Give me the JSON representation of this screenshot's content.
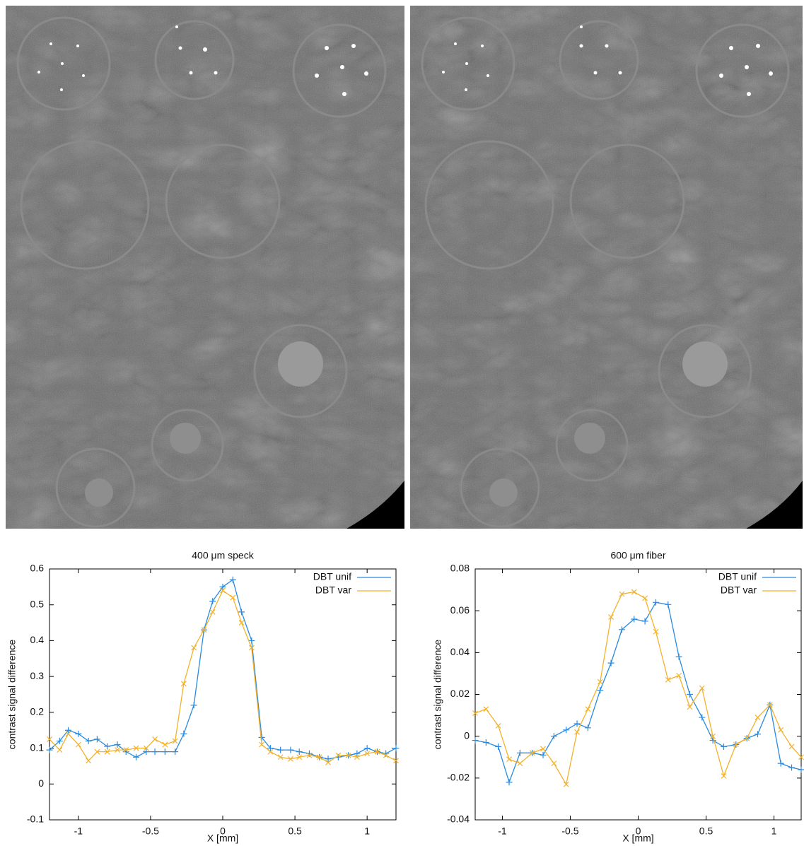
{
  "chart_data": [
    {
      "type": "line",
      "title": "400 μm speck",
      "x_label": "X [mm]",
      "y_label": "contrast signal difference",
      "x": [
        -1.2,
        -1.13,
        -1.07,
        -1.0,
        -0.93,
        -0.87,
        -0.8,
        -0.73,
        -0.67,
        -0.6,
        -0.53,
        -0.47,
        -0.4,
        -0.33,
        -0.27,
        -0.2,
        -0.13,
        -0.07,
        0,
        0.07,
        0.13,
        0.2,
        0.27,
        0.33,
        0.4,
        0.47,
        0.53,
        0.6,
        0.67,
        0.73,
        0.8,
        0.87,
        0.93,
        1.0,
        1.07,
        1.13,
        1.2
      ],
      "series": [
        {
          "name": "DBT unif",
          "color": "#2a8ae0",
          "marker": "+",
          "values": [
            0.095,
            0.12,
            0.15,
            0.14,
            0.12,
            0.125,
            0.105,
            0.11,
            0.09,
            0.075,
            0.09,
            0.09,
            0.09,
            0.09,
            0.14,
            0.22,
            0.43,
            0.51,
            0.55,
            0.57,
            0.48,
            0.4,
            0.13,
            0.1,
            0.095,
            0.095,
            0.09,
            0.085,
            0.075,
            0.07,
            0.075,
            0.08,
            0.085,
            0.1,
            0.09,
            0.085,
            0.1
          ]
        },
        {
          "name": "DBT var",
          "color": "#f2b22c",
          "marker": "x",
          "values": [
            0.125,
            0.095,
            0.14,
            0.11,
            0.065,
            0.09,
            0.09,
            0.095,
            0.095,
            0.1,
            0.1,
            0.125,
            0.11,
            0.12,
            0.28,
            0.38,
            0.43,
            0.48,
            0.54,
            0.52,
            0.45,
            0.38,
            0.11,
            0.09,
            0.075,
            0.07,
            0.075,
            0.08,
            0.075,
            0.06,
            0.08,
            0.08,
            0.075,
            0.085,
            0.09,
            0.08,
            0.065
          ]
        }
      ],
      "xlim": [
        -1.2,
        1.2
      ],
      "xticks": [
        -1,
        -0.5,
        0,
        0.5,
        1
      ],
      "ylim": [
        -0.1,
        0.6
      ],
      "yticks": [
        -0.1,
        0,
        0.1,
        0.2,
        0.3,
        0.4,
        0.5,
        0.6
      ],
      "legend": "top-right"
    },
    {
      "type": "line",
      "title": "600 μm fiber",
      "x_label": "X [mm]",
      "y_label": "contrast signal difference",
      "x": [
        -1.2,
        -1.12,
        -1.03,
        -0.95,
        -0.87,
        -0.78,
        -0.7,
        -0.62,
        -0.53,
        -0.45,
        -0.37,
        -0.28,
        -0.2,
        -0.12,
        -0.03,
        0.05,
        0.13,
        0.22,
        0.3,
        0.38,
        0.47,
        0.55,
        0.63,
        0.72,
        0.8,
        0.88,
        0.97,
        1.05,
        1.13,
        1.2
      ],
      "series": [
        {
          "name": "DBT unif",
          "color": "#2a8ae0",
          "marker": "+",
          "values": [
            -0.002,
            -0.003,
            -0.005,
            -0.022,
            -0.008,
            -0.008,
            -0.009,
            0.0,
            0.003,
            0.006,
            0.004,
            0.022,
            0.035,
            0.051,
            0.056,
            0.055,
            0.064,
            0.063,
            0.038,
            0.02,
            0.009,
            -0.002,
            -0.005,
            -0.004,
            -0.001,
            0.001,
            0.015,
            -0.013,
            -0.015,
            -0.016
          ]
        },
        {
          "name": "DBT var",
          "color": "#f2b22c",
          "marker": "x",
          "values": [
            0.011,
            0.013,
            0.005,
            -0.011,
            -0.013,
            -0.008,
            -0.006,
            -0.013,
            -0.023,
            0.002,
            0.013,
            0.026,
            0.057,
            0.068,
            0.069,
            0.066,
            0.05,
            0.027,
            0.029,
            0.014,
            0.023,
            0.0,
            -0.019,
            -0.004,
            -0.001,
            0.009,
            0.015,
            0.003,
            -0.005,
            -0.01
          ]
        }
      ],
      "xlim": [
        -1.2,
        1.2
      ],
      "xticks": [
        -1,
        -0.5,
        0,
        0.5,
        1
      ],
      "ylim": [
        -0.04,
        0.08
      ],
      "yticks": [
        -0.04,
        -0.02,
        0,
        0.02,
        0.04,
        0.06,
        0.08
      ],
      "legend": "top-right"
    }
  ]
}
